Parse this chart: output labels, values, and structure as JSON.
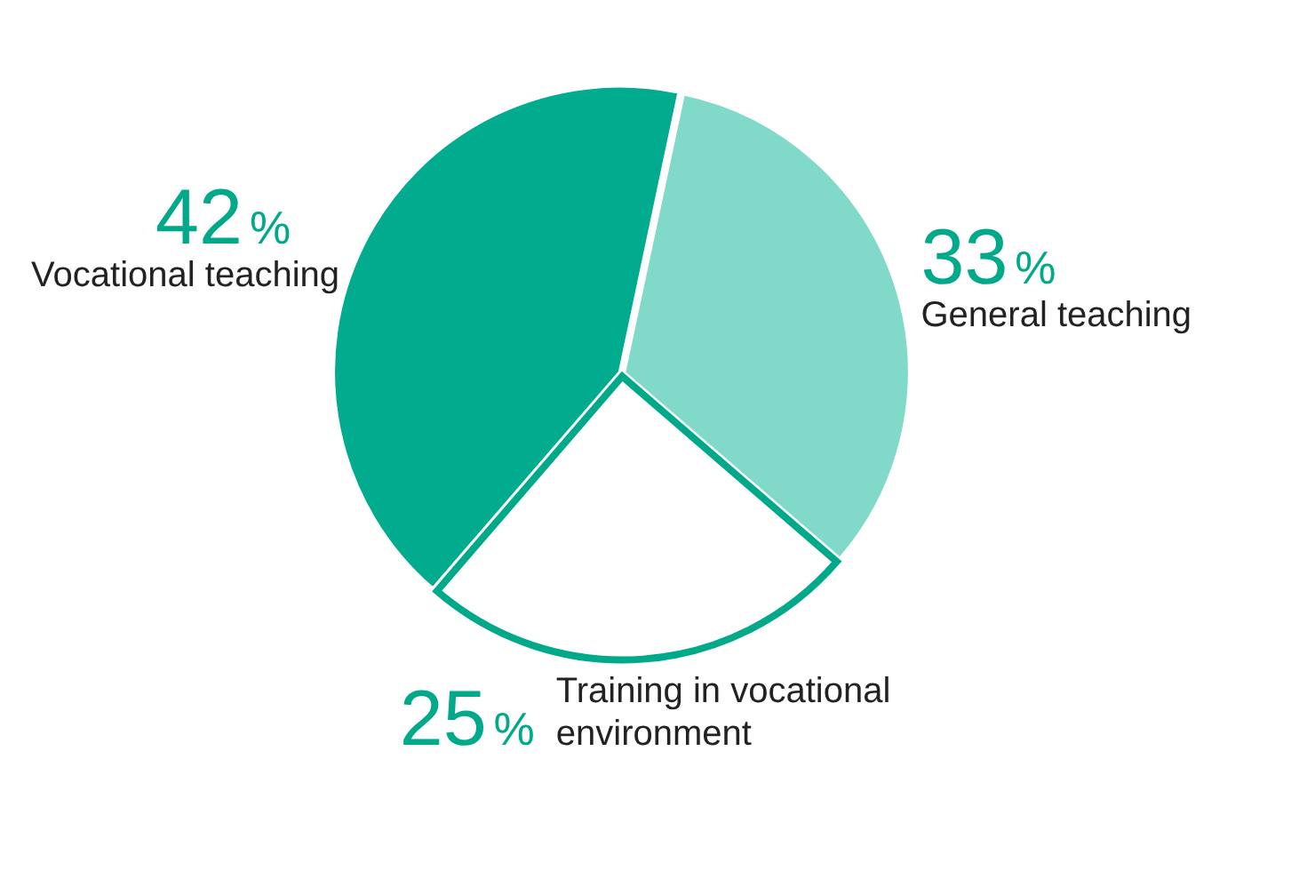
{
  "chart_data": {
    "type": "pie",
    "categories": [
      "General teaching",
      "Training in vocational environment",
      "Vocational teaching"
    ],
    "values": [
      33,
      25,
      42
    ],
    "value_labels": [
      "33%",
      "25%",
      "42%"
    ],
    "colors": [
      "#80d9c9",
      "#ffffff",
      "#00ab8e"
    ],
    "legend": false
  }
}
